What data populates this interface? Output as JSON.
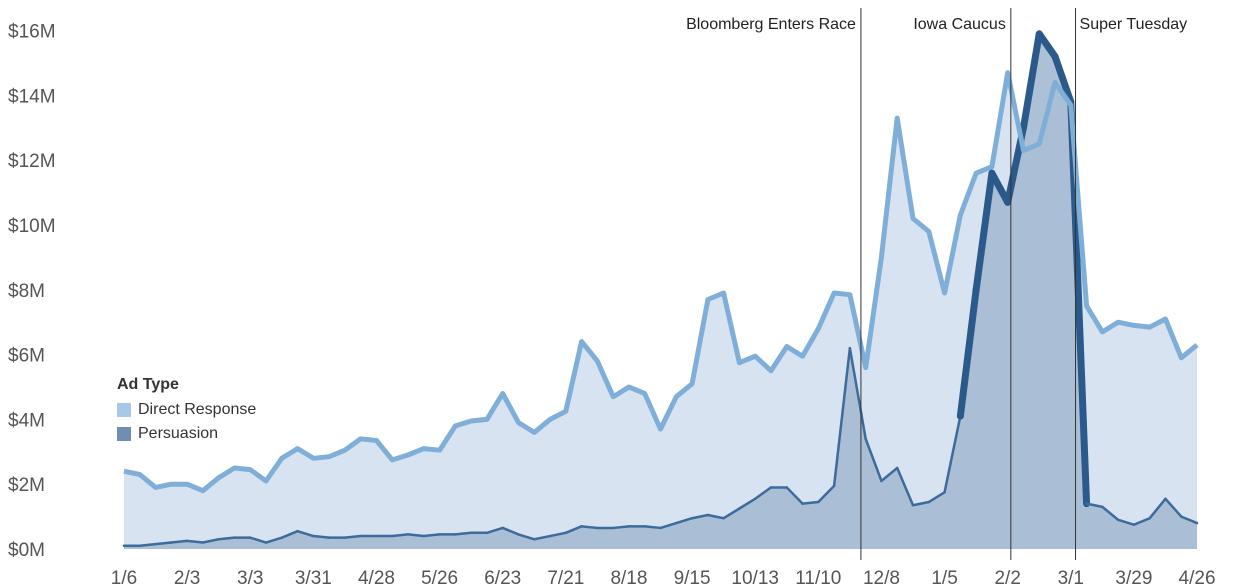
{
  "chart_data": {
    "type": "area",
    "legend": {
      "title": "Ad Type",
      "placement": "left"
    },
    "colors": {
      "direct_fill": "#d7e3f1",
      "direct_line": "#7fafd8",
      "persuasion_fill": "#a6bcd2",
      "persuasion_line": "#3d6b9c",
      "persuasion_dark": "#2b5a8a",
      "direct_swatch": "#a9c7e6",
      "persuasion_swatch": "#6f8fb0",
      "event_line": "#333333"
    },
    "ylim": [
      0,
      16
    ],
    "ytick_labels": [
      "$0M",
      "$2M",
      "$4M",
      "$6M",
      "$8M",
      "$10M",
      "$12M",
      "$14M",
      "$16M"
    ],
    "ytick_values": [
      0,
      2,
      4,
      6,
      8,
      10,
      12,
      14,
      16
    ],
    "xtick_labels": [
      "1/6",
      "2/3",
      "3/3",
      "3/31",
      "4/28",
      "5/26",
      "6/23",
      "7/21",
      "8/18",
      "9/15",
      "10/13",
      "11/10",
      "12/8",
      "1/5",
      "2/2",
      "3/1",
      "3/29",
      "4/26"
    ],
    "xtick_weeks": [
      0,
      4,
      8,
      12,
      16,
      20,
      24,
      28,
      32,
      36,
      40,
      44,
      48,
      52,
      56,
      60,
      64,
      68
    ],
    "events": [
      {
        "label": "Bloomberg Enters Race",
        "week": 46.7
      },
      {
        "label": "Iowa Caucus",
        "week": 56.2
      },
      {
        "label": "Super Tuesday",
        "week": 60.3
      }
    ],
    "series": [
      {
        "name": "Direct Response",
        "values": [
          2.4,
          2.3,
          1.9,
          2.0,
          2.0,
          1.8,
          2.2,
          2.5,
          2.45,
          2.1,
          2.8,
          3.1,
          2.8,
          2.85,
          3.05,
          3.4,
          3.35,
          2.75,
          2.9,
          3.1,
          3.05,
          3.8,
          3.95,
          4.0,
          4.8,
          3.9,
          3.6,
          4.0,
          4.25,
          6.4,
          5.8,
          4.7,
          5.0,
          4.8,
          3.7,
          4.7,
          5.1,
          7.7,
          7.9,
          5.75,
          5.95,
          5.5,
          6.25,
          5.95,
          6.8,
          7.9,
          7.85,
          5.6,
          9.0,
          13.3,
          10.2,
          9.8,
          7.9,
          10.3,
          11.6,
          11.8,
          14.7,
          12.3,
          12.5,
          14.4,
          13.7,
          7.5,
          6.7,
          7.0,
          6.9,
          6.85,
          7.1,
          5.9,
          6.3
        ]
      },
      {
        "name": "Persuasion",
        "values": [
          0.1,
          0.1,
          0.15,
          0.2,
          0.25,
          0.2,
          0.3,
          0.35,
          0.35,
          0.2,
          0.35,
          0.55,
          0.4,
          0.35,
          0.35,
          0.4,
          0.4,
          0.4,
          0.45,
          0.4,
          0.45,
          0.45,
          0.5,
          0.5,
          0.65,
          0.45,
          0.3,
          0.4,
          0.5,
          0.7,
          0.65,
          0.65,
          0.7,
          0.7,
          0.65,
          0.8,
          0.95,
          1.05,
          0.95,
          1.25,
          1.55,
          1.9,
          1.9,
          1.4,
          1.45,
          1.95,
          6.2,
          3.4,
          2.1,
          2.5,
          1.35,
          1.45,
          1.75,
          4.1,
          8.0,
          11.6,
          10.7,
          13.0,
          15.9,
          15.2,
          13.8,
          1.4,
          1.3,
          0.9,
          0.75,
          0.95,
          1.55,
          1.0,
          0.8
        ]
      }
    ]
  }
}
